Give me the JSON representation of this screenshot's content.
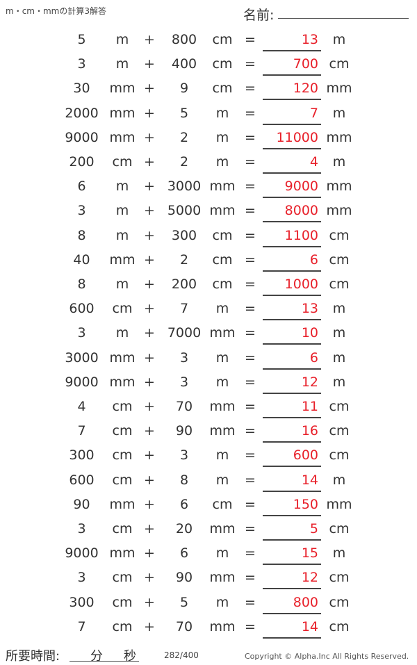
{
  "header": {
    "title": "m・cm・mmの計算3解答",
    "name_label": "名前:"
  },
  "rows": [
    [
      "5",
      "m",
      "+",
      "800",
      "cm",
      "=",
      "13",
      "m"
    ],
    [
      "3",
      "m",
      "+",
      "400",
      "cm",
      "=",
      "700",
      "cm"
    ],
    [
      "30",
      "mm",
      "+",
      "9",
      "cm",
      "=",
      "120",
      "mm"
    ],
    [
      "2000",
      "mm",
      "+",
      "5",
      "m",
      "=",
      "7",
      "m"
    ],
    [
      "9000",
      "mm",
      "+",
      "2",
      "m",
      "=",
      "11000",
      "mm"
    ],
    [
      "200",
      "cm",
      "+",
      "2",
      "m",
      "=",
      "4",
      "m"
    ],
    [
      "6",
      "m",
      "+",
      "3000",
      "mm",
      "=",
      "9000",
      "mm"
    ],
    [
      "3",
      "m",
      "+",
      "5000",
      "mm",
      "=",
      "8000",
      "mm"
    ],
    [
      "8",
      "m",
      "+",
      "300",
      "cm",
      "=",
      "1100",
      "cm"
    ],
    [
      "40",
      "mm",
      "+",
      "2",
      "cm",
      "=",
      "6",
      "cm"
    ],
    [
      "8",
      "m",
      "+",
      "200",
      "cm",
      "=",
      "1000",
      "cm"
    ],
    [
      "600",
      "cm",
      "+",
      "7",
      "m",
      "=",
      "13",
      "m"
    ],
    [
      "3",
      "m",
      "+",
      "7000",
      "mm",
      "=",
      "10",
      "m"
    ],
    [
      "3000",
      "mm",
      "+",
      "3",
      "m",
      "=",
      "6",
      "m"
    ],
    [
      "9000",
      "mm",
      "+",
      "3",
      "m",
      "=",
      "12",
      "m"
    ],
    [
      "4",
      "cm",
      "+",
      "70",
      "mm",
      "=",
      "11",
      "cm"
    ],
    [
      "7",
      "cm",
      "+",
      "90",
      "mm",
      "=",
      "16",
      "cm"
    ],
    [
      "300",
      "cm",
      "+",
      "3",
      "m",
      "=",
      "600",
      "cm"
    ],
    [
      "600",
      "cm",
      "+",
      "8",
      "m",
      "=",
      "14",
      "m"
    ],
    [
      "90",
      "mm",
      "+",
      "6",
      "cm",
      "=",
      "150",
      "mm"
    ],
    [
      "3",
      "cm",
      "+",
      "20",
      "mm",
      "=",
      "5",
      "cm"
    ],
    [
      "9000",
      "mm",
      "+",
      "6",
      "m",
      "=",
      "15",
      "m"
    ],
    [
      "3",
      "cm",
      "+",
      "90",
      "mm",
      "=",
      "12",
      "cm"
    ],
    [
      "300",
      "cm",
      "+",
      "5",
      "m",
      "=",
      "800",
      "cm"
    ],
    [
      "7",
      "cm",
      "+",
      "70",
      "mm",
      "=",
      "14",
      "cm"
    ]
  ],
  "footer": {
    "time_label": "所要時間:",
    "minutes": "分",
    "seconds": "秒",
    "page": "282/400",
    "copyright": "Copyright © Alpha.Inc All Rights Reserved."
  },
  "colors": {
    "answer": "#e8202a"
  }
}
